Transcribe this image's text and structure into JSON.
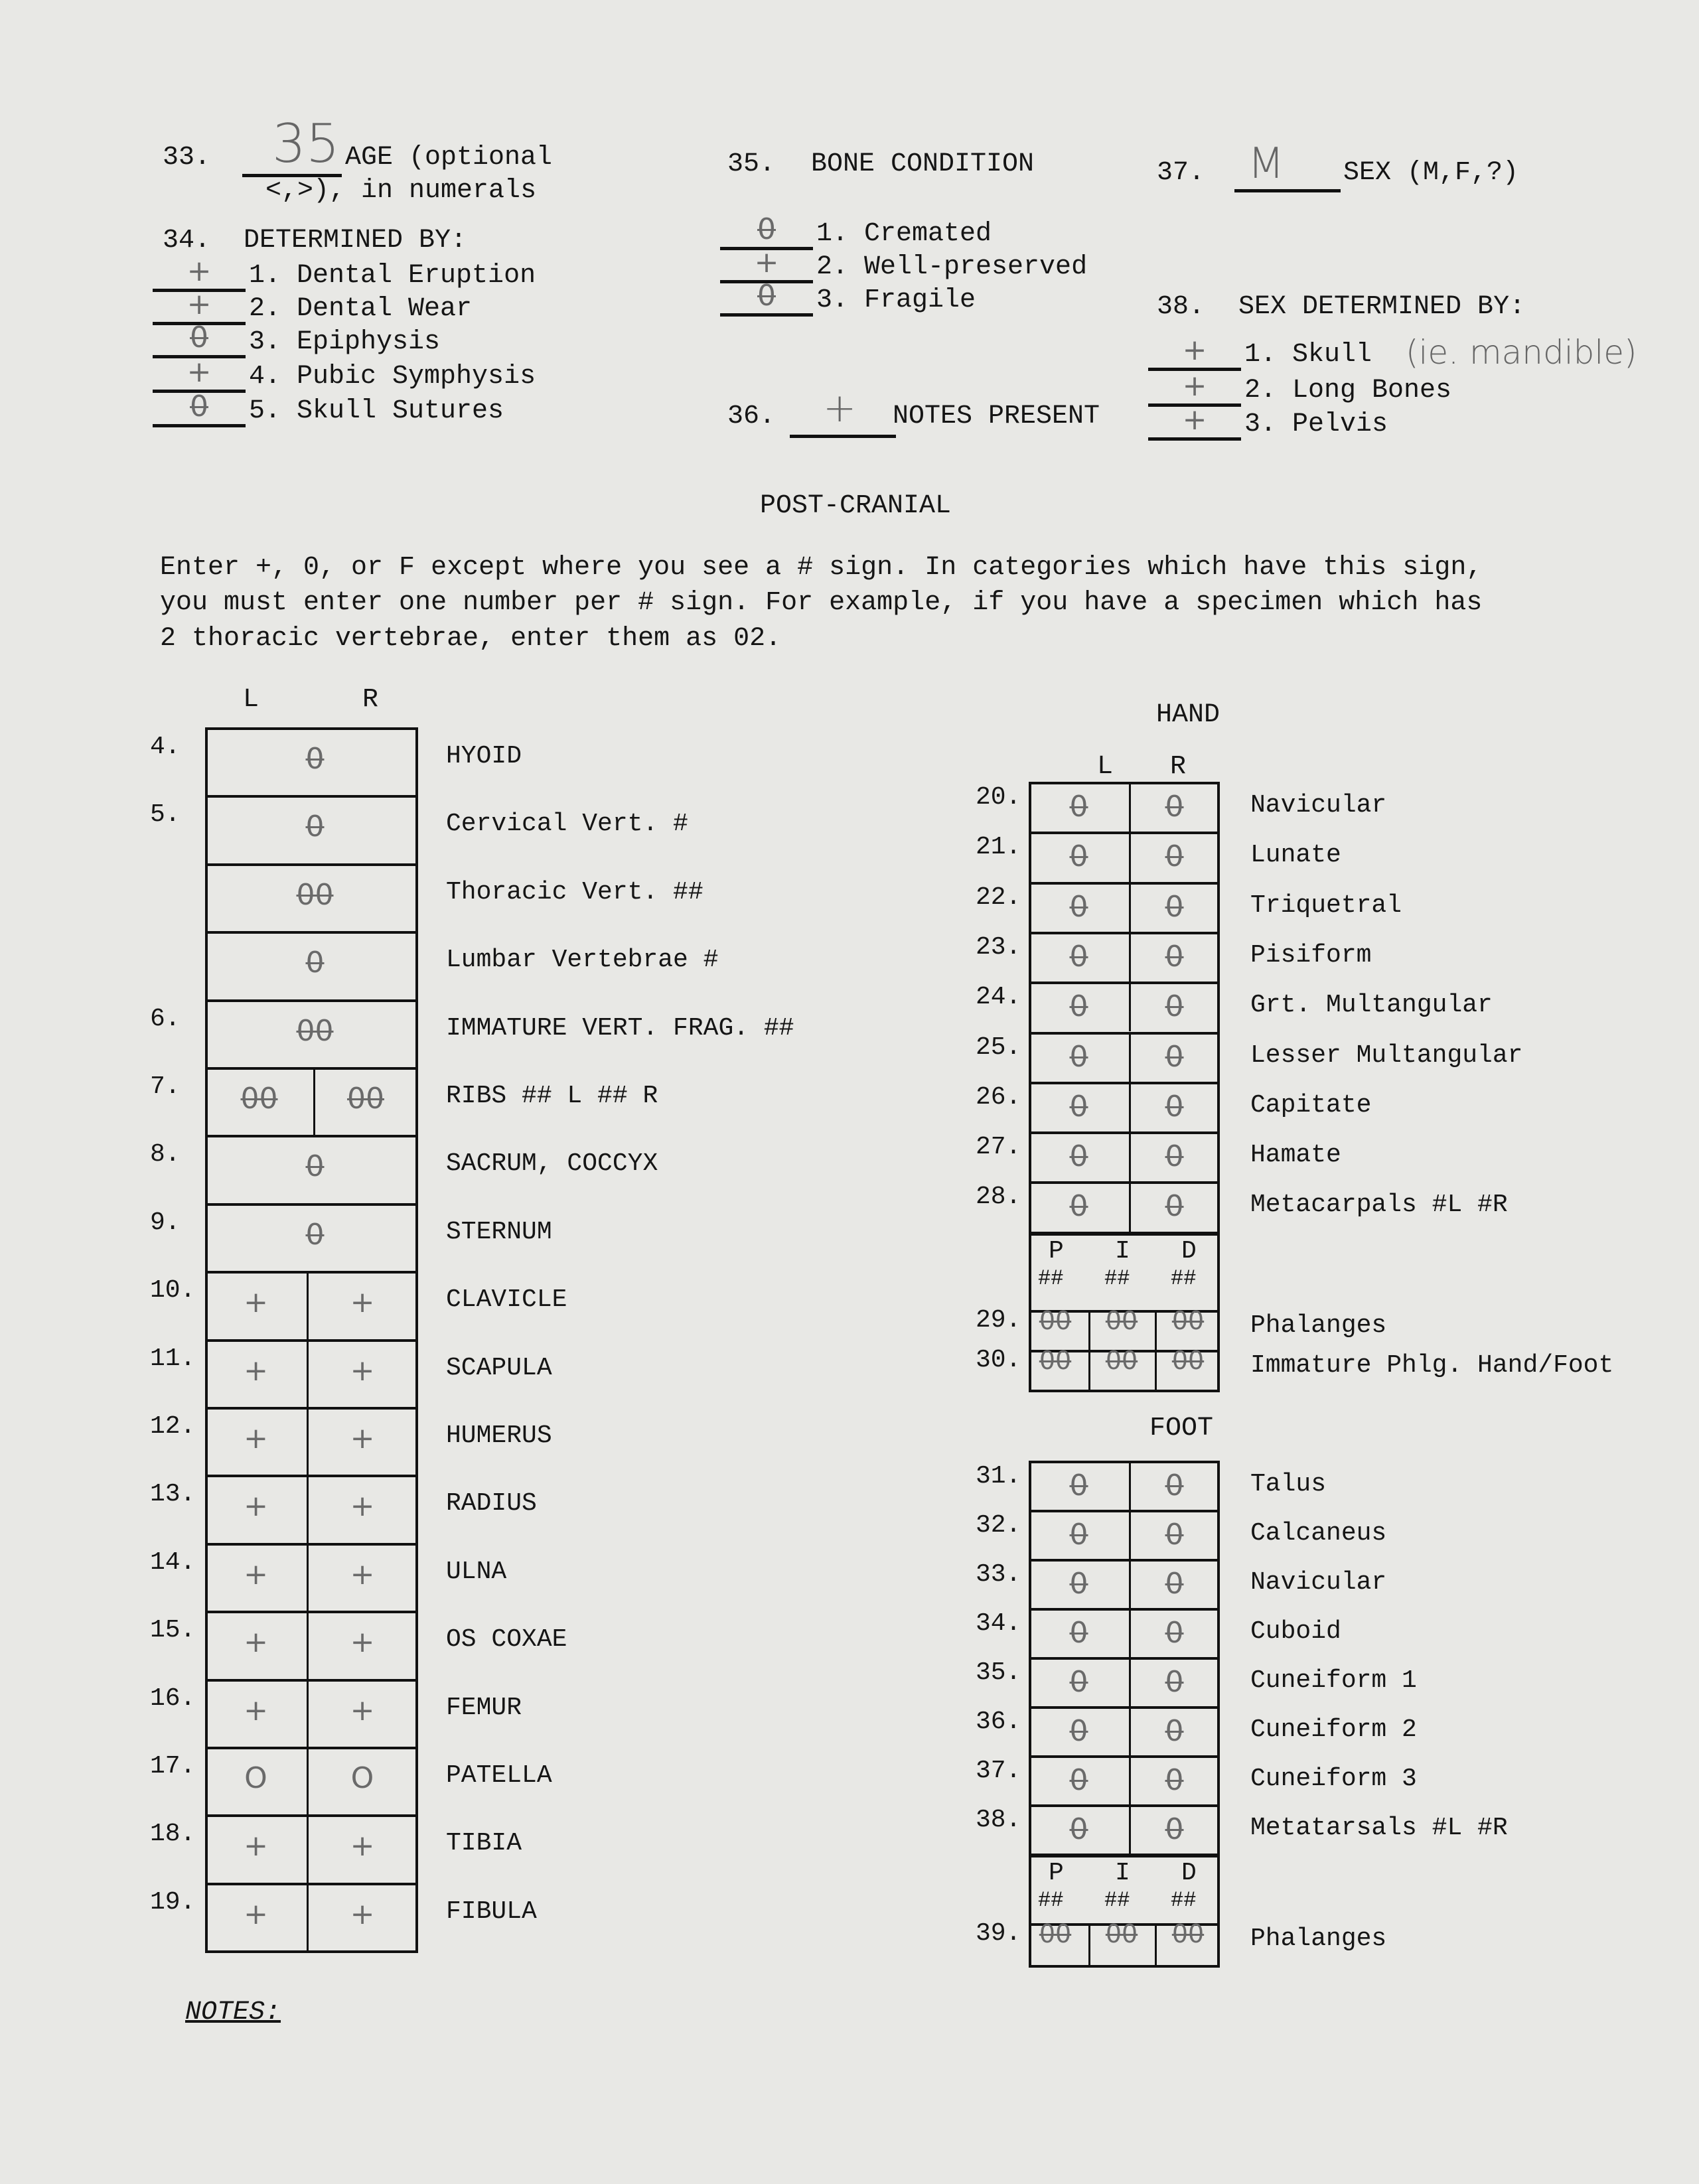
{
  "header": {
    "q33": {
      "num": "33.",
      "value": "35",
      "label1": "AGE (optional",
      "label2": "<,>), in numerals"
    },
    "q34": {
      "num": "34.",
      "title": "DETERMINED BY:",
      "items": [
        {
          "mark": "+",
          "label": "1. Dental Eruption"
        },
        {
          "mark": "+",
          "label": "2. Dental Wear"
        },
        {
          "mark": "0",
          "label": "3. Epiphysis"
        },
        {
          "mark": "+",
          "label": "4. Pubic Symphysis"
        },
        {
          "mark": "0",
          "label": "5. Skull Sutures"
        }
      ]
    },
    "q35": {
      "num": "35.",
      "title": "BONE CONDITION",
      "items": [
        {
          "mark": "0",
          "label": "1. Cremated"
        },
        {
          "mark": "+",
          "label": "2. Well-preserved"
        },
        {
          "mark": "0",
          "label": "3. Fragile"
        }
      ]
    },
    "q36": {
      "num": "36.",
      "value": "+",
      "label": "NOTES PRESENT"
    },
    "q37": {
      "num": "37.",
      "value": "M",
      "label": "SEX (M,F,?)"
    },
    "q38": {
      "num": "38.",
      "title": "SEX DETERMINED BY:",
      "note": "(ie. mandible)",
      "items": [
        {
          "mark": "+",
          "label": "1. Skull"
        },
        {
          "mark": "+",
          "label": "2. Long Bones"
        },
        {
          "mark": "+",
          "label": "3. Pelvis"
        }
      ]
    }
  },
  "section_title": "POST-CRANIAL",
  "instructions": [
    "Enter +, 0, or F except where you see a # sign.  In categories which have this sign,",
    "you must enter one number per # sign.  For example, if you have a specimen which has",
    "2 thoracic vertebrae, enter them as 02."
  ],
  "left_table": {
    "col_l": "L",
    "col_r": "R",
    "rows": [
      {
        "num": "4.",
        "label": "HYOID",
        "single": "0"
      },
      {
        "num": "5.",
        "label": "Cervical Vert. #",
        "single": "0"
      },
      {
        "num": "",
        "label": "Thoracic Vert. ##",
        "single": "00"
      },
      {
        "num": "",
        "label": "Lumbar Vertebrae #",
        "single": "0"
      },
      {
        "num": "6.",
        "label": "IMMATURE VERT. FRAG. ##",
        "single": "00"
      },
      {
        "num": "7.",
        "label": "RIBS ## L  ## R",
        "l": "00",
        "r": "00"
      },
      {
        "num": "8.",
        "label": "SACRUM, COCCYX",
        "single": "0"
      },
      {
        "num": "9.",
        "label": "STERNUM",
        "single": "0"
      },
      {
        "num": "10.",
        "label": "CLAVICLE",
        "l": "+",
        "r": "+"
      },
      {
        "num": "11.",
        "label": "SCAPULA",
        "l": "+",
        "r": "+"
      },
      {
        "num": "12.",
        "label": "HUMERUS",
        "l": "+",
        "r": "+"
      },
      {
        "num": "13.",
        "label": "RADIUS",
        "l": "+",
        "r": "+"
      },
      {
        "num": "14.",
        "label": "ULNA",
        "l": "+",
        "r": "+"
      },
      {
        "num": "15.",
        "label": "OS COXAE",
        "l": "+",
        "r": "+"
      },
      {
        "num": "16.",
        "label": "FEMUR",
        "l": "+",
        "r": "+"
      },
      {
        "num": "17.",
        "label": "PATELLA",
        "l": "O",
        "r": "O"
      },
      {
        "num": "18.",
        "label": "TIBIA",
        "l": "+",
        "r": "+"
      },
      {
        "num": "19.",
        "label": "FIBULA",
        "l": "+",
        "r": "+"
      }
    ]
  },
  "hand": {
    "title": "HAND",
    "col_l": "L",
    "col_r": "R",
    "rows": [
      {
        "num": "20.",
        "label": "Navicular",
        "l": "0",
        "r": "0"
      },
      {
        "num": "21.",
        "label": "Lunate",
        "l": "0",
        "r": "0"
      },
      {
        "num": "22.",
        "label": "Triquetral",
        "l": "0",
        "r": "0"
      },
      {
        "num": "23.",
        "label": "Pisiform",
        "l": "0",
        "r": "0"
      },
      {
        "num": "24.",
        "label": "Grt. Multangular",
        "l": "0",
        "r": "0"
      },
      {
        "num": "25.",
        "label": "Lesser Multangular",
        "l": "0",
        "r": "0"
      },
      {
        "num": "26.",
        "label": "Capitate",
        "l": "0",
        "r": "0"
      },
      {
        "num": "27.",
        "label": "Hamate",
        "l": "0",
        "r": "0"
      },
      {
        "num": "28.",
        "label": "Metacarpals #L #R",
        "l": "0",
        "r": "0"
      }
    ],
    "pid_headers": [
      "P",
      "I",
      "D"
    ],
    "pid_sub": [
      "##",
      "##",
      "##"
    ],
    "pid_rows": [
      {
        "num": "29.",
        "label": "Phalanges",
        "values": [
          "00",
          "00",
          "00"
        ]
      },
      {
        "num": "30.",
        "label": "Immature Phlg. Hand/Foot",
        "values": [
          "00",
          "00",
          "00"
        ]
      }
    ]
  },
  "foot": {
    "title": "FOOT",
    "rows": [
      {
        "num": "31.",
        "label": "Talus",
        "l": "0",
        "r": "0"
      },
      {
        "num": "32.",
        "label": "Calcaneus",
        "l": "0",
        "r": "0"
      },
      {
        "num": "33.",
        "label": "Navicular",
        "l": "0",
        "r": "0"
      },
      {
        "num": "34.",
        "label": "Cuboid",
        "l": "0",
        "r": "0"
      },
      {
        "num": "35.",
        "label": "Cuneiform 1",
        "l": "0",
        "r": "0"
      },
      {
        "num": "36.",
        "label": "Cuneiform 2",
        "l": "0",
        "r": "0"
      },
      {
        "num": "37.",
        "label": "Cuneiform 3",
        "l": "0",
        "r": "0"
      },
      {
        "num": "38.",
        "label": "Metatarsals #L #R",
        "l": "0",
        "r": "0"
      }
    ],
    "pid_headers": [
      "P",
      "I",
      "D"
    ],
    "pid_sub": [
      "##",
      "##",
      "##"
    ],
    "pid_rows": [
      {
        "num": "39.",
        "label": "Phalanges",
        "values": [
          "00",
          "00",
          "00"
        ]
      }
    ]
  },
  "notes_label": "NOTES:"
}
